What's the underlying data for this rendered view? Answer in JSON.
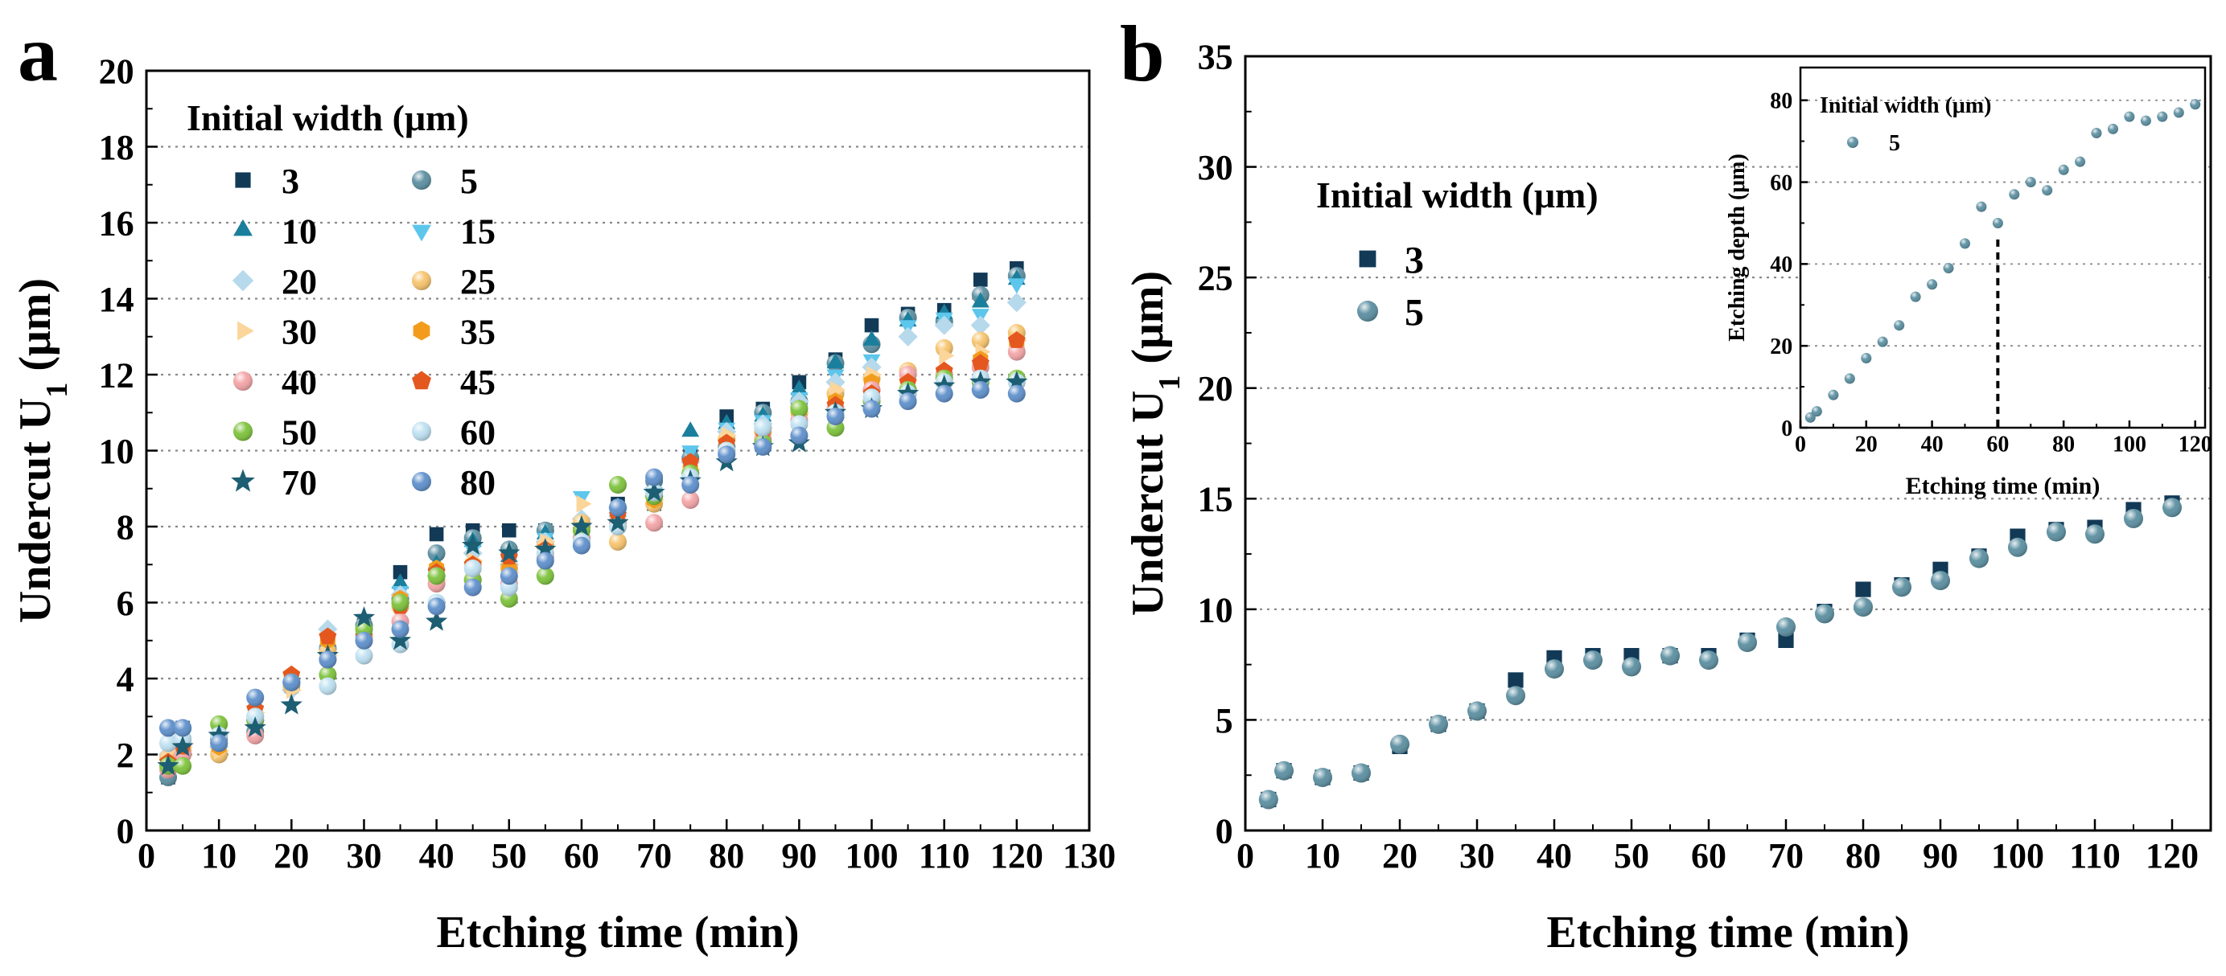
{
  "panels": {
    "a": {
      "label": "a"
    },
    "b": {
      "label": "b"
    }
  },
  "colors": {
    "3": "#123a57",
    "5": "#5a8ea0",
    "10": "#1a7f9c",
    "15": "#5cc6ec",
    "20": "#b7d9ec",
    "25": "#f6c36b",
    "30": "#fbd59a",
    "35": "#f39c1c",
    "40": "#f3a3a6",
    "45": "#e4581f",
    "50": "#7cc23a",
    "60": "#bde0f1",
    "70": "#1d5e72",
    "80": "#5d8fcb"
  },
  "chart_data": [
    {
      "id": "a",
      "type": "scatter",
      "title": "",
      "xlabel": "Etching time (min)",
      "ylabel_main": "Undercut U",
      "ylabel_sub": "1",
      "ylabel_unit": " (μm)",
      "xlim": [
        0,
        130
      ],
      "ylim": [
        0,
        20
      ],
      "xticks": [
        "0",
        "10",
        "20",
        "30",
        "40",
        "50",
        "60",
        "70",
        "80",
        "90",
        "100",
        "110",
        "120",
        "130"
      ],
      "yticks": [
        "0",
        "2",
        "4",
        "6",
        "8",
        "10",
        "12",
        "14",
        "16",
        "18",
        "20"
      ],
      "grid": "horizontal-dotted",
      "legend_title": "Initial width (μm)",
      "legend_position": "top-left",
      "x": [
        3,
        5,
        10,
        15,
        20,
        25,
        30,
        35,
        40,
        45,
        50,
        55,
        60,
        65,
        70,
        75,
        80,
        85,
        90,
        95,
        100,
        105,
        110,
        115,
        120
      ],
      "series": [
        {
          "name": "3",
          "marker": "square",
          "values": [
            1.4,
            2.7,
            2.4,
            2.6,
            3.8,
            4.8,
            5.4,
            6.8,
            7.8,
            7.9,
            7.9,
            7.9,
            7.9,
            8.6,
            8.6,
            9.9,
            10.9,
            11.1,
            11.8,
            12.4,
            13.3,
            13.6,
            13.7,
            14.5,
            14.8
          ]
        },
        {
          "name": "5",
          "marker": "circle",
          "values": [
            1.4,
            2.7,
            2.4,
            2.6,
            3.9,
            4.8,
            5.4,
            6.1,
            7.3,
            7.7,
            7.4,
            7.9,
            7.7,
            8.5,
            9.2,
            9.8,
            10.1,
            11.0,
            11.3,
            12.3,
            12.8,
            13.5,
            13.4,
            14.1,
            14.6
          ]
        },
        {
          "name": "10",
          "marker": "triangle-up",
          "values": [
            1.7,
            2.6,
            2.4,
            2.7,
            3.9,
            4.9,
            5.3,
            6.5,
            7.0,
            7.6,
            7.2,
            7.8,
            8.0,
            8.4,
            9.0,
            10.5,
            10.7,
            10.9,
            11.6,
            12.3,
            12.9,
            13.4,
            13.6,
            13.9,
            14.5
          ]
        },
        {
          "name": "15",
          "marker": "triangle-down",
          "values": [
            1.8,
            2.5,
            2.3,
            2.8,
            3.8,
            4.7,
            5.2,
            6.3,
            6.8,
            7.4,
            7.1,
            7.7,
            8.8,
            8.3,
            8.9,
            10.0,
            10.6,
            10.8,
            11.4,
            12.0,
            12.4,
            13.3,
            13.5,
            13.6,
            14.4
          ]
        },
        {
          "name": "20",
          "marker": "diamond",
          "values": [
            2.0,
            2.3,
            2.2,
            2.9,
            3.7,
            5.3,
            5.1,
            6.2,
            6.7,
            7.3,
            7.0,
            7.6,
            8.2,
            8.5,
            8.8,
            9.7,
            10.5,
            10.7,
            11.3,
            11.8,
            12.2,
            13.0,
            13.3,
            13.3,
            13.9
          ]
        },
        {
          "name": "25",
          "marker": "circle",
          "values": [
            1.9,
            2.1,
            2.0,
            3.0,
            3.8,
            4.7,
            5.0,
            5.9,
            6.5,
            7.0,
            6.9,
            7.5,
            8.1,
            7.6,
            8.6,
            9.4,
            10.3,
            10.5,
            11.0,
            11.5,
            11.9,
            12.1,
            12.7,
            12.9,
            13.1
          ]
        },
        {
          "name": "30",
          "marker": "triangle-right",
          "values": [
            2.1,
            2.2,
            2.1,
            3.1,
            3.7,
            4.6,
            5.1,
            6.0,
            6.6,
            7.1,
            6.8,
            7.6,
            8.6,
            8.0,
            8.7,
            9.5,
            10.4,
            10.6,
            11.0,
            11.6,
            12.0,
            12.0,
            12.5,
            12.6,
            12.9
          ]
        },
        {
          "name": "35",
          "marker": "hexagon",
          "values": [
            1.7,
            2.0,
            2.2,
            3.0,
            4.0,
            5.0,
            5.0,
            6.1,
            6.9,
            7.0,
            6.9,
            7.4,
            7.8,
            8.2,
            8.7,
            9.5,
            10.2,
            10.4,
            10.9,
            11.3,
            11.8,
            11.9,
            12.0,
            12.4,
            12.8
          ]
        },
        {
          "name": "40",
          "marker": "circle",
          "values": [
            1.6,
            2.0,
            2.3,
            2.5,
            3.9,
            4.5,
            5.0,
            5.5,
            6.5,
            6.6,
            6.5,
            7.2,
            7.7,
            8.1,
            8.1,
            8.7,
            10.0,
            10.3,
            10.8,
            11.1,
            11.6,
            12.0,
            12.0,
            12.2,
            12.6
          ]
        },
        {
          "name": "45",
          "marker": "pentagon",
          "values": [
            1.8,
            2.2,
            2.4,
            3.2,
            4.1,
            5.1,
            5.1,
            5.9,
            6.8,
            7.0,
            7.2,
            7.4,
            7.9,
            8.3,
            8.9,
            9.7,
            10.2,
            10.5,
            11.1,
            11.2,
            11.5,
            11.8,
            12.1,
            12.3,
            12.9
          ]
        },
        {
          "name": "50",
          "marker": "circle",
          "values": [
            1.7,
            1.7,
            2.8,
            2.9,
            3.9,
            4.1,
            5.3,
            6.0,
            6.7,
            6.6,
            6.1,
            6.7,
            7.9,
            9.1,
            8.8,
            9.4,
            10.0,
            10.2,
            11.1,
            10.6,
            11.3,
            11.6,
            11.9,
            11.8,
            11.9
          ]
        },
        {
          "name": "60",
          "marker": "circle",
          "values": [
            2.3,
            2.4,
            2.5,
            3.0,
            3.9,
            3.8,
            4.6,
            4.9,
            6.0,
            6.9,
            6.4,
            7.3,
            7.6,
            8.0,
            8.9,
            9.3,
            10.0,
            10.6,
            10.7,
            11.0,
            11.4,
            11.5,
            11.8,
            11.9,
            11.8
          ]
        },
        {
          "name": "70",
          "marker": "star",
          "values": [
            1.7,
            2.2,
            2.5,
            2.7,
            3.3,
            4.6,
            5.6,
            5.0,
            5.5,
            7.5,
            7.3,
            7.4,
            8.0,
            8.1,
            8.9,
            9.2,
            9.7,
            10.1,
            10.2,
            11.0,
            11.1,
            11.5,
            11.7,
            11.8,
            11.8
          ]
        },
        {
          "name": "80",
          "marker": "circle",
          "values": [
            2.7,
            2.7,
            2.3,
            3.5,
            3.9,
            4.5,
            5.0,
            5.3,
            5.9,
            6.4,
            6.7,
            7.1,
            7.5,
            8.5,
            9.3,
            9.1,
            9.9,
            10.1,
            10.4,
            10.9,
            11.1,
            11.3,
            11.5,
            11.6,
            11.5
          ]
        }
      ]
    },
    {
      "id": "b",
      "type": "scatter",
      "title": "",
      "xlabel": "Etching time (min)",
      "ylabel_main": "Undercut U",
      "ylabel_sub": "1",
      "ylabel_unit": " (μm)",
      "xlim": [
        0,
        125
      ],
      "ylim": [
        0,
        35
      ],
      "xticks": [
        "0",
        "10",
        "20",
        "30",
        "40",
        "50",
        "60",
        "70",
        "80",
        "90",
        "100",
        "110",
        "120"
      ],
      "yticks": [
        "0",
        "5",
        "10",
        "15",
        "20",
        "25",
        "30",
        "35"
      ],
      "grid": "horizontal-dotted",
      "legend_title": "Initial width (μm)",
      "legend_position": "upper-left",
      "x": [
        3,
        5,
        10,
        15,
        20,
        25,
        30,
        35,
        40,
        45,
        50,
        55,
        60,
        65,
        70,
        75,
        80,
        85,
        90,
        95,
        100,
        105,
        110,
        115,
        120
      ],
      "series": [
        {
          "name": "3",
          "marker": "square",
          "values": [
            1.4,
            2.7,
            2.4,
            2.6,
            3.8,
            4.8,
            5.4,
            6.8,
            7.8,
            7.9,
            7.9,
            7.9,
            7.9,
            8.6,
            8.6,
            9.9,
            10.9,
            11.1,
            11.8,
            12.4,
            13.3,
            13.6,
            13.7,
            14.5,
            14.8
          ]
        },
        {
          "name": "5",
          "marker": "circle",
          "values": [
            1.4,
            2.7,
            2.4,
            2.6,
            3.9,
            4.8,
            5.4,
            6.1,
            7.3,
            7.7,
            7.4,
            7.9,
            7.7,
            8.5,
            9.2,
            9.8,
            10.1,
            11.0,
            11.3,
            12.3,
            12.8,
            13.5,
            13.4,
            14.1,
            14.6
          ]
        }
      ]
    },
    {
      "id": "b-inset",
      "type": "scatter",
      "title": "",
      "xlabel": "Etching time (min)",
      "ylabel": "Etching depth (μm)",
      "xlim": [
        0,
        123
      ],
      "ylim": [
        0,
        88
      ],
      "xticks": [
        "0",
        "20",
        "40",
        "60",
        "80",
        "100",
        "120"
      ],
      "yticks": [
        "0",
        "20",
        "40",
        "60",
        "80"
      ],
      "grid": "horizontal-dotted",
      "legend_title": "Initial width (μm)",
      "legend_position": "top-left",
      "annotation": {
        "type": "vertical-dashed-line",
        "x": 60,
        "y_top": 46
      },
      "x": [
        3,
        5,
        10,
        15,
        20,
        25,
        30,
        35,
        40,
        45,
        50,
        55,
        60,
        65,
        70,
        75,
        80,
        85,
        90,
        95,
        100,
        105,
        110,
        115,
        120
      ],
      "series": [
        {
          "name": "5",
          "marker": "circle",
          "values": [
            2.5,
            4.0,
            8.0,
            12.0,
            17.0,
            21.0,
            25.0,
            32.0,
            35.0,
            39.0,
            45.0,
            54.0,
            50.0,
            57.0,
            60.0,
            58.0,
            63.0,
            65.0,
            72.0,
            73.0,
            76.0,
            75.0,
            76.0,
            77.0,
            79.0
          ]
        }
      ]
    }
  ]
}
